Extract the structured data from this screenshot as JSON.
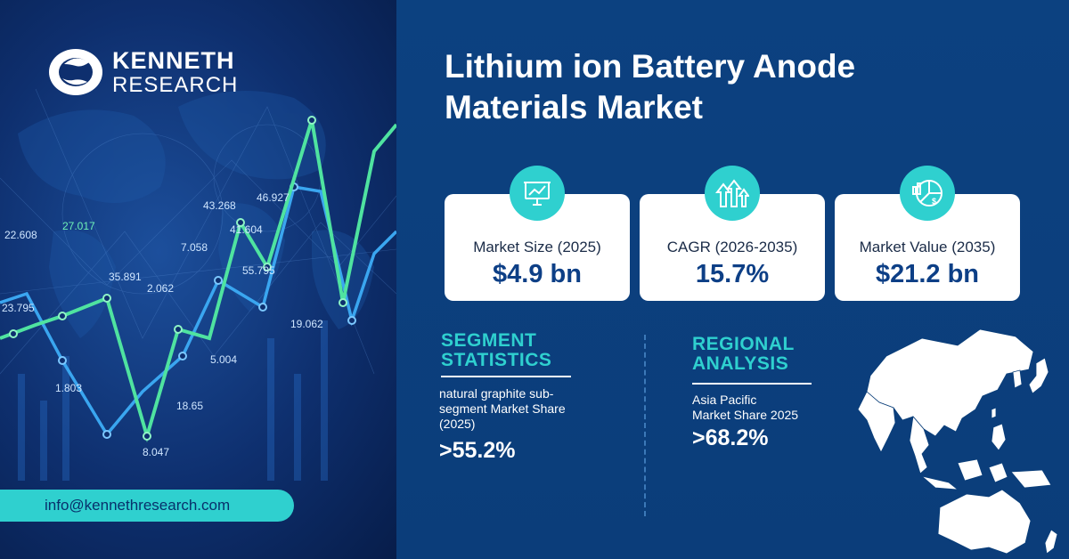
{
  "brand": {
    "line1": "KENNETH",
    "line2": "RESEARCH"
  },
  "contact": {
    "email": "info@kennethresearch.com"
  },
  "title": {
    "line1": "Lithium ion Battery Anode",
    "line2": "Materials Market"
  },
  "chart_decor": {
    "labels": [
      "22.608",
      "27.017",
      "23.795",
      "35.891",
      "1.803",
      "2.062",
      "7.058",
      "43.268",
      "41.604",
      "46.927",
      "55.795",
      "5.004",
      "18.65",
      "8.047",
      "19.062"
    ]
  },
  "cards": [
    {
      "label": "Market Size (2025)",
      "value": "$4.9 bn",
      "icon": "presentation-chart-icon"
    },
    {
      "label": "CAGR (2026-2035)",
      "value": "15.7%",
      "icon": "growth-arrows-icon"
    },
    {
      "label": "Market Value  (2035)",
      "value": "$21.2 bn",
      "icon": "pie-dollar-icon"
    }
  ],
  "segment": {
    "title_line1": "SEGMENT",
    "title_line2": "STATISTICS",
    "desc_line1": "natural graphite sub-",
    "desc_line2": "segment Market Share",
    "desc_line3": "(2025)",
    "value": ">55.2%"
  },
  "regional": {
    "title_line1": "REGIONAL",
    "title_line2": "ANALYSIS",
    "desc_line1": "Asia Pacific",
    "desc_line2": "Market Share 2025",
    "value": ">68.2%"
  },
  "colors": {
    "accent": "#2fd0cf",
    "navy": "#0b3f7a",
    "value_blue": "#0d3f86"
  }
}
